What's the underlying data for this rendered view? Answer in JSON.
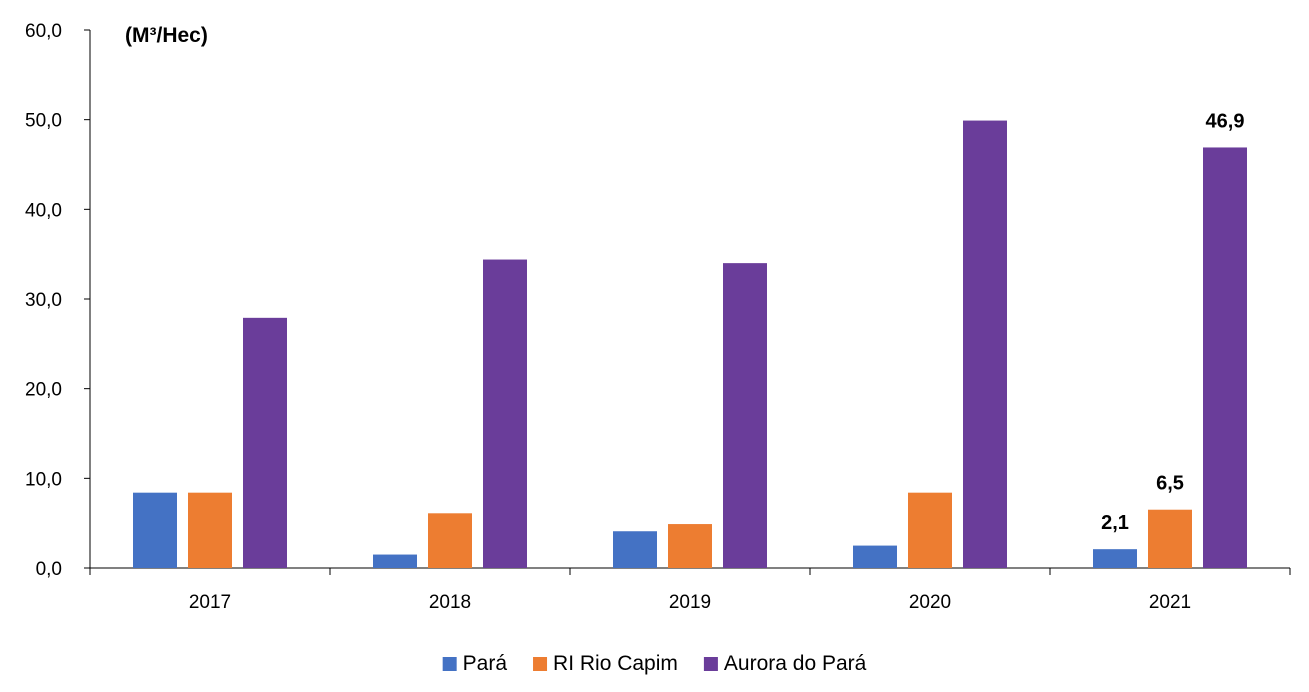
{
  "chart_data": {
    "type": "bar",
    "unit_label": "(M³/Hec)",
    "categories": [
      "2017",
      "2018",
      "2019",
      "2020",
      "2021"
    ],
    "series": [
      {
        "name": "Pará",
        "color": "#4472C4",
        "values": [
          8.4,
          1.5,
          4.1,
          2.5,
          2.1
        ]
      },
      {
        "name": "RI Rio Capim",
        "color": "#ED7D31",
        "values": [
          8.4,
          6.1,
          4.9,
          8.4,
          6.5
        ]
      },
      {
        "name": "Aurora do Pará",
        "color": "#6A3D9A",
        "values": [
          27.9,
          34.4,
          34.0,
          49.9,
          46.9
        ]
      }
    ],
    "ylim": [
      0,
      60
    ],
    "yticks": [
      "0,0",
      "10,0",
      "20,0",
      "30,0",
      "40,0",
      "50,0",
      "60,0"
    ],
    "data_labels": [
      {
        "category": "2021",
        "series": "Pará",
        "text": "2,1"
      },
      {
        "category": "2021",
        "series": "RI Rio Capim",
        "text": "6,5"
      },
      {
        "category": "2021",
        "series": "Aurora do Pará",
        "text": "46,9"
      }
    ],
    "grid": false,
    "legend_position": "bottom"
  }
}
